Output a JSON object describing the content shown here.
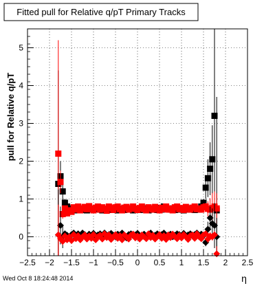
{
  "chart_data": {
    "type": "scatter",
    "title": "Fitted pull for Relative q/pT  Primary Tracks",
    "xlabel": "η",
    "ylabel": "pull for Relative q/pT",
    "xlim": [
      -2.5,
      2.5
    ],
    "ylim": [
      -0.5,
      5.5
    ],
    "grid": true,
    "x_ticks": [
      "−2.5",
      "−2",
      "−1.5",
      "−1",
      "−0.5",
      "0",
      "0.5",
      "1",
      "1.5",
      "2",
      "2.5"
    ],
    "y_ticks": [
      "0",
      "1",
      "2",
      "3",
      "4",
      "5"
    ],
    "series": [
      {
        "color": "#000000",
        "marker": "square",
        "x": [
          -1.8,
          -1.75,
          -1.7,
          -1.65,
          -1.6,
          -1.55,
          -1.5,
          -1.45,
          -1.4,
          -1.35,
          -1.3,
          -1.25,
          -1.2,
          -1.15,
          -1.1,
          -1.05,
          -1.0,
          -0.95,
          -0.9,
          -0.85,
          -0.8,
          -0.75,
          -0.7,
          -0.65,
          -0.6,
          -0.55,
          -0.5,
          -0.45,
          -0.4,
          -0.35,
          -0.3,
          -0.25,
          -0.2,
          -0.15,
          -0.1,
          -0.05,
          0.0,
          0.05,
          0.1,
          0.15,
          0.2,
          0.25,
          0.3,
          0.35,
          0.4,
          0.45,
          0.5,
          0.55,
          0.6,
          0.65,
          0.7,
          0.75,
          0.8,
          0.85,
          0.9,
          0.95,
          1.0,
          1.05,
          1.1,
          1.15,
          1.2,
          1.25,
          1.3,
          1.35,
          1.4,
          1.45,
          1.5,
          1.55,
          1.6,
          1.65,
          1.7,
          1.75,
          1.8
        ],
        "y": [
          1.4,
          1.6,
          1.2,
          0.9,
          0.8,
          0.75,
          0.72,
          0.74,
          0.7,
          0.73,
          0.72,
          0.75,
          0.71,
          0.7,
          0.73,
          0.74,
          0.72,
          0.75,
          0.73,
          0.72,
          0.7,
          0.74,
          0.73,
          0.71,
          0.75,
          0.72,
          0.73,
          0.7,
          0.74,
          0.72,
          0.71,
          0.73,
          0.75,
          0.72,
          0.7,
          0.73,
          0.74,
          0.71,
          0.72,
          0.75,
          0.73,
          0.7,
          0.72,
          0.74,
          0.73,
          0.71,
          0.76,
          0.72,
          0.8,
          0.74,
          0.73,
          0.72,
          0.75,
          0.71,
          0.73,
          0.72,
          0.74,
          0.7,
          0.73,
          0.75,
          0.72,
          0.73,
          0.71,
          0.74,
          0.72,
          0.8,
          0.9,
          1.3,
          1.55,
          1.8,
          2.05,
          3.2,
          0.7
        ],
        "err": [
          3.0,
          0.4,
          0.25,
          0.1,
          0.06,
          0.05,
          0.04,
          0.04,
          0.04,
          0.04,
          0.04,
          0.04,
          0.04,
          0.04,
          0.04,
          0.04,
          0.04,
          0.04,
          0.04,
          0.04,
          0.04,
          0.04,
          0.04,
          0.04,
          0.04,
          0.04,
          0.04,
          0.04,
          0.04,
          0.04,
          0.04,
          0.04,
          0.04,
          0.04,
          0.04,
          0.04,
          0.04,
          0.04,
          0.04,
          0.04,
          0.04,
          0.04,
          0.04,
          0.04,
          0.04,
          0.04,
          0.04,
          0.04,
          0.04,
          0.04,
          0.04,
          0.04,
          0.04,
          0.04,
          0.04,
          0.04,
          0.04,
          0.04,
          0.04,
          0.04,
          0.04,
          0.04,
          0.04,
          0.04,
          0.04,
          0.06,
          0.1,
          0.3,
          0.5,
          0.7,
          0.9,
          2.5,
          3.0
        ]
      },
      {
        "color": "#ff0000",
        "marker": "square",
        "x": [
          -1.8,
          -1.75,
          -1.7,
          -1.65,
          -1.6,
          -1.55,
          -1.5,
          -1.45,
          -1.4,
          -1.35,
          -1.3,
          -1.25,
          -1.2,
          -1.15,
          -1.1,
          -1.05,
          -1.0,
          -0.95,
          -0.9,
          -0.85,
          -0.8,
          -0.75,
          -0.7,
          -0.65,
          -0.6,
          -0.55,
          -0.5,
          -0.45,
          -0.4,
          -0.35,
          -0.3,
          -0.25,
          -0.2,
          -0.15,
          -0.1,
          -0.05,
          0.0,
          0.05,
          0.1,
          0.15,
          0.2,
          0.25,
          0.3,
          0.35,
          0.4,
          0.45,
          0.5,
          0.55,
          0.6,
          0.65,
          0.7,
          0.75,
          0.8,
          0.85,
          0.9,
          0.95,
          1.0,
          1.05,
          1.1,
          1.15,
          1.2,
          1.25,
          1.3,
          1.35,
          1.4,
          1.45,
          1.5,
          1.55,
          1.6,
          1.65,
          1.7,
          1.75,
          1.8
        ],
        "y": [
          2.2,
          1.45,
          0.6,
          0.75,
          0.62,
          0.7,
          0.66,
          0.78,
          0.72,
          0.8,
          0.7,
          0.75,
          0.79,
          0.73,
          0.81,
          0.74,
          0.7,
          0.77,
          0.8,
          0.72,
          0.78,
          0.74,
          0.69,
          0.8,
          0.76,
          0.71,
          0.78,
          0.8,
          0.73,
          0.7,
          0.77,
          0.79,
          0.72,
          0.75,
          0.8,
          0.74,
          0.71,
          0.76,
          0.8,
          0.73,
          0.7,
          0.78,
          0.75,
          0.72,
          0.79,
          0.74,
          0.7,
          0.77,
          0.73,
          0.8,
          0.72,
          0.75,
          0.7,
          0.78,
          0.8,
          0.73,
          0.76,
          0.71,
          0.79,
          0.74,
          0.72,
          0.77,
          0.8,
          0.73,
          0.75,
          0.72,
          0.78,
          0.8,
          0.74,
          0.72,
          0.76,
          0.8,
          0.75
        ],
        "err": [
          3.0,
          0.3,
          0.12,
          0.06,
          0.05,
          0.04,
          0.04,
          0.04,
          0.04,
          0.04,
          0.04,
          0.04,
          0.04,
          0.04,
          0.04,
          0.04,
          0.04,
          0.04,
          0.04,
          0.04,
          0.04,
          0.04,
          0.04,
          0.04,
          0.04,
          0.04,
          0.04,
          0.04,
          0.04,
          0.04,
          0.04,
          0.04,
          0.04,
          0.04,
          0.04,
          0.04,
          0.04,
          0.04,
          0.04,
          0.04,
          0.04,
          0.04,
          0.04,
          0.04,
          0.04,
          0.04,
          0.04,
          0.04,
          0.04,
          0.04,
          0.04,
          0.04,
          0.04,
          0.04,
          0.04,
          0.04,
          0.04,
          0.04,
          0.04,
          0.04,
          0.04,
          0.04,
          0.04,
          0.04,
          0.04,
          0.05,
          0.06,
          0.1,
          0.2,
          0.3,
          0.4,
          0.4,
          0.4
        ]
      },
      {
        "color": "#000000",
        "marker": "diamond",
        "x": [
          -1.8,
          -1.75,
          -1.7,
          -1.65,
          -1.6,
          -1.55,
          -1.5,
          -1.45,
          -1.4,
          -1.35,
          -1.3,
          -1.25,
          -1.2,
          -1.15,
          -1.1,
          -1.05,
          -1.0,
          -0.95,
          -0.9,
          -0.85,
          -0.8,
          -0.75,
          -0.7,
          -0.65,
          -0.6,
          -0.55,
          -0.5,
          -0.45,
          -0.4,
          -0.35,
          -0.3,
          -0.25,
          -0.2,
          -0.15,
          -0.1,
          -0.05,
          0.0,
          0.05,
          0.1,
          0.15,
          0.2,
          0.25,
          0.3,
          0.35,
          0.4,
          0.45,
          0.5,
          0.55,
          0.6,
          0.65,
          0.7,
          0.75,
          0.8,
          0.85,
          0.9,
          0.95,
          1.0,
          1.05,
          1.1,
          1.15,
          1.2,
          1.25,
          1.3,
          1.35,
          1.4,
          1.45,
          1.5,
          1.55,
          1.6,
          1.65,
          1.7,
          1.75,
          1.8
        ],
        "y": [
          0.05,
          0.3,
          0.0,
          0.08,
          0.04,
          -0.02,
          0.06,
          0.1,
          -0.04,
          0.08,
          0.02,
          0.1,
          0.06,
          -0.02,
          0.07,
          0.04,
          0.09,
          0.0,
          0.05,
          0.08,
          0.03,
          0.1,
          -0.01,
          0.06,
          0.09,
          0.04,
          0.0,
          0.07,
          0.05,
          0.1,
          0.02,
          -0.03,
          0.06,
          0.08,
          0.03,
          0.05,
          0.09,
          0.01,
          0.04,
          0.07,
          0.02,
          0.06,
          0.1,
          0.0,
          0.04,
          0.08,
          0.03,
          0.06,
          0.1,
          0.02,
          0.05,
          0.07,
          0.0,
          0.04,
          0.08,
          0.06,
          0.03,
          0.09,
          0.01,
          0.05,
          0.08,
          0.02,
          0.06,
          0.1,
          0.04,
          0.07,
          0.03,
          -0.15,
          0.2,
          0.5,
          0.35,
          0.3,
          0.0
        ],
        "err": [
          1.2,
          0.5,
          0.3,
          0.08,
          0.05,
          0.04,
          0.04,
          0.04,
          0.04,
          0.04,
          0.04,
          0.04,
          0.04,
          0.04,
          0.04,
          0.04,
          0.04,
          0.04,
          0.04,
          0.04,
          0.04,
          0.04,
          0.04,
          0.04,
          0.04,
          0.04,
          0.04,
          0.04,
          0.04,
          0.04,
          0.04,
          0.04,
          0.04,
          0.04,
          0.04,
          0.04,
          0.04,
          0.04,
          0.04,
          0.04,
          0.04,
          0.04,
          0.04,
          0.04,
          0.04,
          0.04,
          0.04,
          0.04,
          0.04,
          0.04,
          0.04,
          0.04,
          0.04,
          0.04,
          0.04,
          0.04,
          0.04,
          0.04,
          0.04,
          0.04,
          0.04,
          0.04,
          0.04,
          0.04,
          0.04,
          0.05,
          0.06,
          0.1,
          0.2,
          0.3,
          0.4,
          0.6,
          0.5
        ]
      },
      {
        "color": "#ff0000",
        "marker": "diamond",
        "x": [
          -1.8,
          -1.75,
          -1.7,
          -1.65,
          -1.6,
          -1.55,
          -1.5,
          -1.45,
          -1.4,
          -1.35,
          -1.3,
          -1.25,
          -1.2,
          -1.15,
          -1.1,
          -1.05,
          -1.0,
          -0.95,
          -0.9,
          -0.85,
          -0.8,
          -0.75,
          -0.7,
          -0.65,
          -0.6,
          -0.55,
          -0.5,
          -0.45,
          -0.4,
          -0.35,
          -0.3,
          -0.25,
          -0.2,
          -0.15,
          -0.1,
          -0.05,
          0.0,
          0.05,
          0.1,
          0.15,
          0.2,
          0.25,
          0.3,
          0.35,
          0.4,
          0.45,
          0.5,
          0.55,
          0.6,
          0.65,
          0.7,
          0.75,
          0.8,
          0.85,
          0.9,
          0.95,
          1.0,
          1.05,
          1.1,
          1.15,
          1.2,
          1.25,
          1.3,
          1.35,
          1.4,
          1.45,
          1.5,
          1.55,
          1.6,
          1.65,
          1.7,
          1.75,
          1.8
        ],
        "y": [
          0.05,
          -0.05,
          -0.12,
          0.02,
          -0.08,
          0.0,
          -0.1,
          0.06,
          -0.05,
          0.03,
          -0.08,
          0.0,
          0.05,
          -0.06,
          0.02,
          -0.04,
          0.06,
          -0.08,
          0.0,
          0.04,
          -0.06,
          0.08,
          -0.02,
          0.05,
          -0.07,
          0.0,
          0.06,
          -0.04,
          0.03,
          -0.08,
          0.05,
          0.0,
          -0.06,
          0.04,
          0.07,
          -0.03,
          0.02,
          -0.06,
          0.05,
          0.0,
          -0.05,
          0.08,
          -0.02,
          0.04,
          -0.06,
          0.0,
          0.06,
          -0.04,
          0.03,
          -0.07,
          0.05,
          -0.02,
          0.07,
          0.0,
          -0.05,
          0.04,
          -0.03,
          0.06,
          0.0,
          -0.07,
          0.03,
          0.05,
          -0.04,
          0.08,
          0.0,
          -0.05,
          0.05,
          0.08,
          -0.06,
          0.02,
          0.0,
          0.05,
          -0.45
        ],
        "err": [
          0.8,
          0.1,
          0.1,
          0.06,
          0.05,
          0.04,
          0.04,
          0.04,
          0.04,
          0.04,
          0.04,
          0.04,
          0.04,
          0.04,
          0.04,
          0.04,
          0.04,
          0.04,
          0.04,
          0.04,
          0.04,
          0.04,
          0.04,
          0.04,
          0.04,
          0.04,
          0.04,
          0.04,
          0.04,
          0.04,
          0.04,
          0.04,
          0.04,
          0.04,
          0.04,
          0.04,
          0.04,
          0.04,
          0.04,
          0.04,
          0.04,
          0.04,
          0.04,
          0.04,
          0.04,
          0.04,
          0.04,
          0.04,
          0.04,
          0.04,
          0.04,
          0.04,
          0.04,
          0.04,
          0.04,
          0.04,
          0.04,
          0.04,
          0.04,
          0.04,
          0.04,
          0.04,
          0.04,
          0.04,
          0.04,
          0.05,
          0.06,
          0.08,
          0.1,
          0.1,
          0.1,
          0.1,
          0.2
        ]
      }
    ]
  },
  "footer": {
    "timestamp": "Wed Oct  8 18:24:48 2014"
  }
}
